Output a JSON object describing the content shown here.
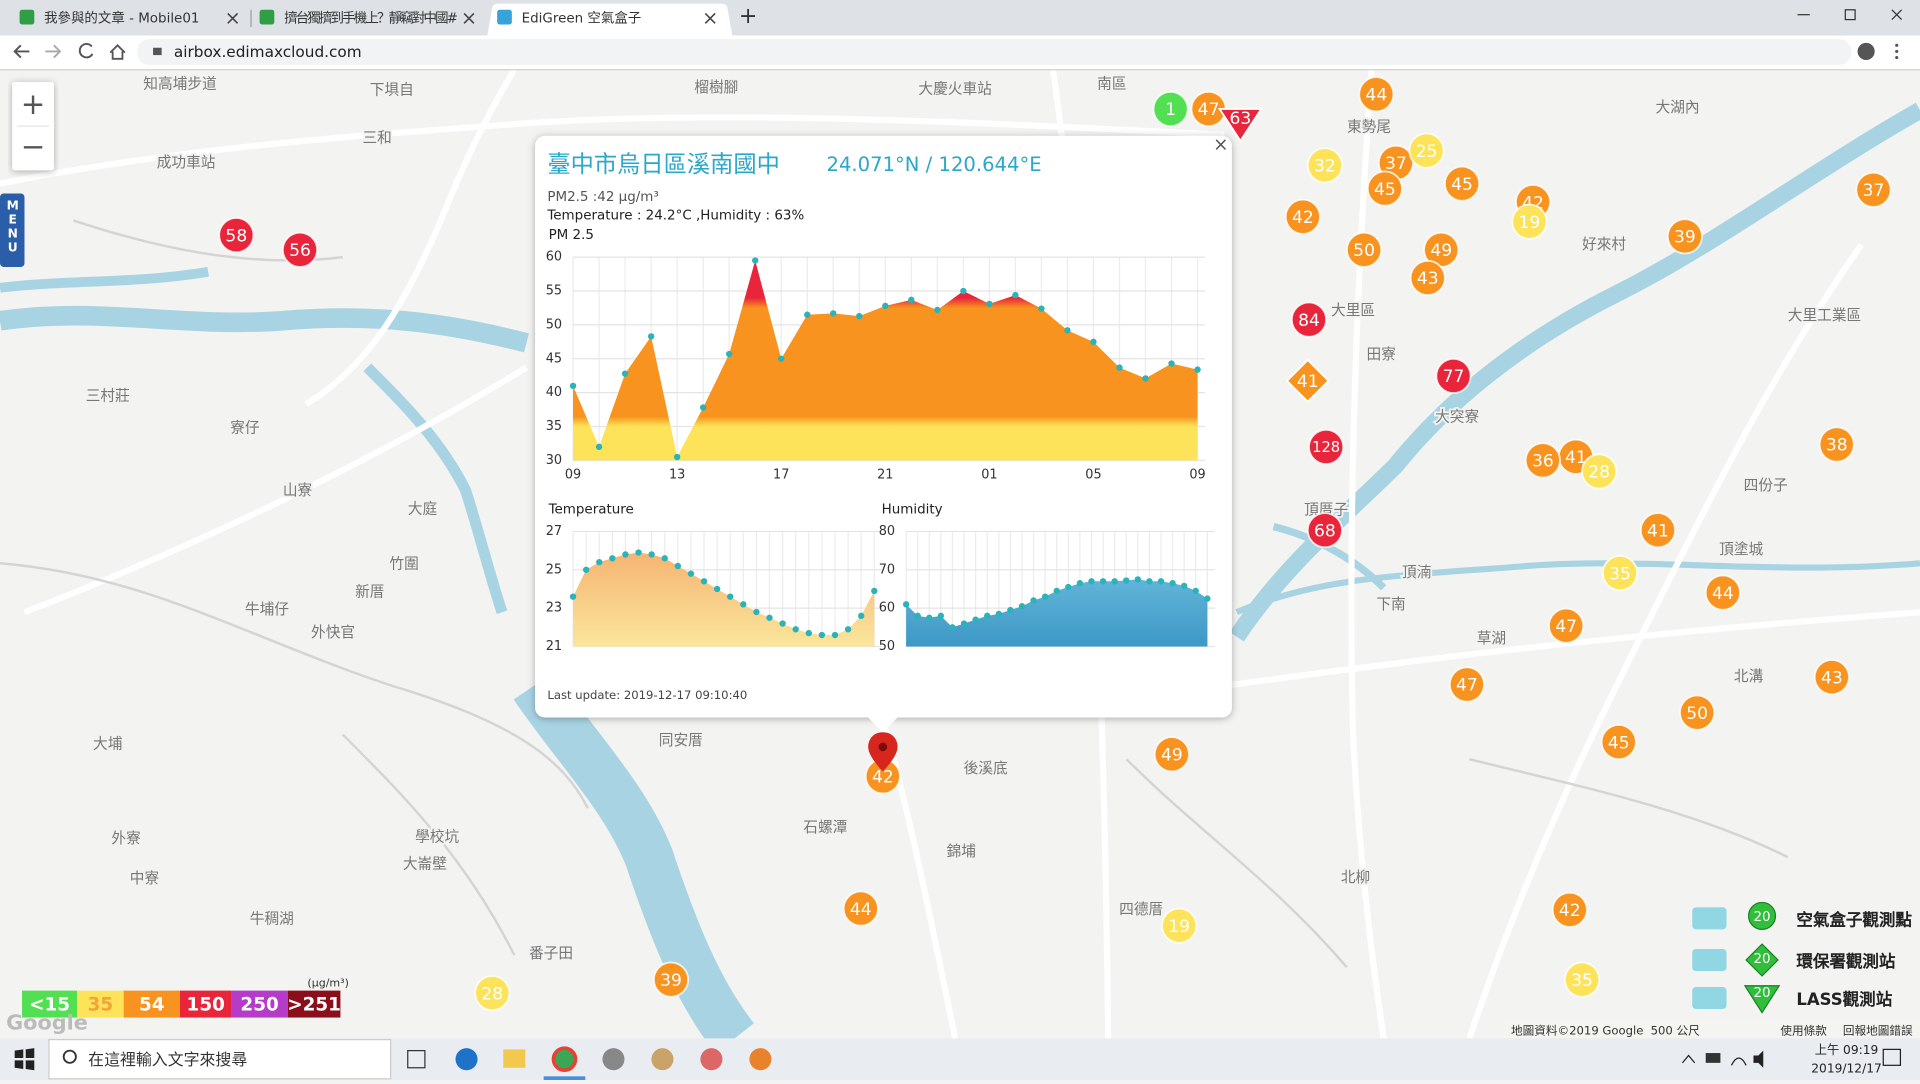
{
  "browser": {
    "tabs": [
      "我參與的文章 - Mobile01",
      "擠台獨擠到手機上？靜竊對中國#",
      "EdiGreen 空氣盒子"
    ],
    "url": "airbox.edimaxcloud.com"
  },
  "map": {
    "zoom_in": "+",
    "zoom_out": "−",
    "menu": "MENU",
    "markers": [
      1,
      47,
      63,
      44,
      32,
      37,
      25,
      45,
      45,
      42,
      19,
      42,
      50,
      49,
      43,
      84,
      41,
      77,
      128,
      41,
      36,
      28,
      68,
      41,
      35,
      44,
      47,
      47,
      43,
      50,
      45,
      37,
      39,
      38,
      58,
      56,
      49,
      42,
      44,
      19,
      39,
      28,
      42,
      35
    ],
    "places": [
      "知高埔步道",
      "下埧自",
      "榴樹腳",
      "大慶火車站",
      "南區",
      "東勢尾",
      "大湖內",
      "三和",
      "成功車站",
      "好來村",
      "大里區",
      "大里工業區",
      "三村莊",
      "田寮",
      "大突寮",
      "寮仔",
      "山寮",
      "大庭",
      "頂厝子",
      "四份子",
      "頂塗城",
      "竹圍",
      "新厝",
      "下南",
      "草湖",
      "北溝",
      "大埔",
      "同安厝",
      "後溪底",
      "石螺潭",
      "學校坑",
      "錦埔",
      "北柳",
      "大崙壁",
      "牛稠湖",
      "四德厝",
      "番子田",
      "中寮",
      "外寮",
      "頂湳",
      "外快官",
      "牛埔仔"
    ],
    "legend": {
      "unit": "(μg/m³)",
      "levels": [
        {
          "value": 15,
          "label": "<15",
          "color": "#52e052"
        },
        {
          "value": 35,
          "label": "35",
          "color": "#fde35a"
        },
        {
          "value": 54,
          "label": "54",
          "color": "#f7931e"
        },
        {
          "value": 150,
          "label": "150",
          "color": "#e8253a"
        },
        {
          "value": 250,
          "label": "250",
          "color": "#b43cc8"
        },
        {
          "value": 251,
          "label": ">251",
          "color": "#8a0f1a"
        }
      ]
    },
    "stations": [
      {
        "badge": "20",
        "label": "空氣盒子觀測點"
      },
      {
        "badge": "20",
        "label": "環保署觀測站"
      },
      {
        "badge": "20",
        "label": "LASS觀測站"
      }
    ],
    "logo": "Google",
    "attribution": [
      "地圖資料©2019 Google",
      "500 公尺",
      "使用條款",
      "回報地圖錯誤"
    ]
  },
  "popup": {
    "close": "×",
    "title": "臺中市烏日區溪南國中",
    "coords": "24.071°N / 120.644°E",
    "pm_line": "PM2.5 :42 μg/m³",
    "weather_line": "Temperature : 24.2°C ,Humidity : 63%",
    "last_update": "Last update: 2019-12-17 09:10:40",
    "charts": [
      {
        "type": "area",
        "title": "PM 2.5",
        "categories": [
          "09",
          null,
          null,
          null,
          "13",
          null,
          null,
          null,
          "17",
          null,
          null,
          null,
          "21",
          null,
          null,
          null,
          "01",
          null,
          null,
          null,
          "05",
          null,
          null,
          null,
          "09"
        ],
        "values": [
          41,
          32,
          42.8,
          48.3,
          30.5,
          37.8,
          45.7,
          59.5,
          45,
          51.5,
          51.7,
          51.3,
          52.8,
          53.7,
          52.2,
          55,
          53.1,
          54.4,
          52.4,
          49.2,
          47.5,
          43.7,
          42.1,
          44.3,
          43.4
        ],
        "ylim": [
          30,
          60
        ],
        "yticks": [
          30,
          35,
          40,
          45,
          50,
          55,
          60
        ],
        "grid": true,
        "point_color": "#2bb3b8"
      },
      {
        "type": "area",
        "title": "Temperature",
        "values": [
          23.6,
          25.0,
          25.4,
          25.6,
          25.8,
          25.9,
          25.8,
          25.6,
          25.2,
          24.8,
          24.4,
          24.0,
          23.6,
          23.2,
          22.8,
          22.5,
          22.2,
          21.9,
          21.7,
          21.6,
          21.6,
          21.9,
          22.6,
          23.9
        ],
        "ylim": [
          21,
          27
        ],
        "yticks": [
          21,
          23,
          25,
          27
        ],
        "grid": true,
        "point_color": "#2bb3b8",
        "fill_colors": [
          "#f3a968",
          "#fbe69c"
        ]
      },
      {
        "type": "area",
        "title": "Humidity",
        "values": [
          61,
          58,
          57.5,
          58,
          55,
          56,
          57,
          58,
          58.5,
          59.5,
          60.5,
          62,
          63,
          64.5,
          65.5,
          66.5,
          67,
          67,
          67,
          67.2,
          67.5,
          67,
          67,
          66.5,
          65.8,
          64.5,
          62.5
        ],
        "ylim": [
          50,
          80
        ],
        "yticks": [
          50,
          60,
          70,
          80
        ],
        "grid": true,
        "point_color": "#2bb3b8",
        "fill_colors": [
          "#7cc8e6",
          "#3d98c6"
        ]
      }
    ]
  },
  "taskbar": {
    "search": "在這裡輸入文字來搜尋",
    "time": "上午 09:19",
    "date": "2019/12/17"
  }
}
